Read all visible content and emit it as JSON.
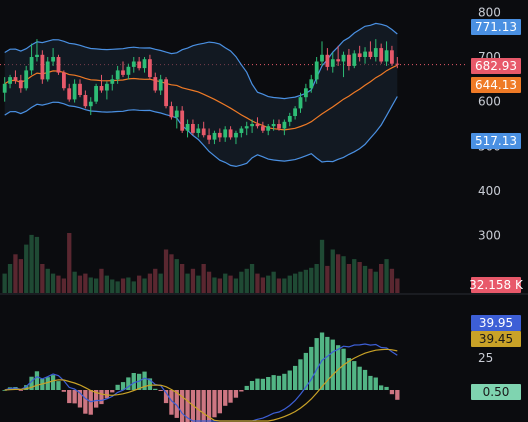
{
  "chart_data": {
    "type": "candlestick",
    "price_panel": {
      "y_ticks": [
        {
          "value": 800,
          "label": "800"
        },
        {
          "value": 700,
          "label": "700"
        },
        {
          "value": 600,
          "label": "600"
        },
        {
          "value": 500,
          "label": "500"
        },
        {
          "value": 400,
          "label": "400"
        },
        {
          "value": 300,
          "label": "300"
        }
      ],
      "ylim": [
        250,
        815
      ],
      "badges": {
        "upper_band": {
          "label": "771.13",
          "color": "#4a90e2"
        },
        "last_price": {
          "label": "682.93",
          "color": "#e8596a"
        },
        "moving_average": {
          "label": "644.13",
          "color": "#ef7a26"
        },
        "lower_band": {
          "label": "517.13",
          "color": "#4a90e2"
        }
      },
      "last_price_line": 682.93,
      "candles": [
        {
          "o": 620,
          "h": 655,
          "l": 600,
          "c": 640
        },
        {
          "o": 640,
          "h": 660,
          "l": 630,
          "c": 655
        },
        {
          "o": 655,
          "h": 670,
          "l": 640,
          "c": 648
        },
        {
          "o": 648,
          "h": 660,
          "l": 620,
          "c": 630
        },
        {
          "o": 630,
          "h": 680,
          "l": 625,
          "c": 670
        },
        {
          "o": 670,
          "h": 730,
          "l": 660,
          "c": 700
        },
        {
          "o": 700,
          "h": 740,
          "l": 690,
          "c": 705
        },
        {
          "o": 705,
          "h": 715,
          "l": 640,
          "c": 650
        },
        {
          "o": 650,
          "h": 700,
          "l": 645,
          "c": 690
        },
        {
          "o": 690,
          "h": 720,
          "l": 680,
          "c": 700
        },
        {
          "o": 700,
          "h": 705,
          "l": 660,
          "c": 665
        },
        {
          "o": 665,
          "h": 670,
          "l": 625,
          "c": 630
        },
        {
          "o": 630,
          "h": 640,
          "l": 600,
          "c": 605
        },
        {
          "o": 605,
          "h": 650,
          "l": 598,
          "c": 640
        },
        {
          "o": 640,
          "h": 650,
          "l": 610,
          "c": 615
        },
        {
          "o": 615,
          "h": 625,
          "l": 585,
          "c": 590
        },
        {
          "o": 590,
          "h": 610,
          "l": 570,
          "c": 600
        },
        {
          "o": 600,
          "h": 640,
          "l": 595,
          "c": 635
        },
        {
          "o": 635,
          "h": 660,
          "l": 620,
          "c": 625
        },
        {
          "o": 625,
          "h": 645,
          "l": 605,
          "c": 640
        },
        {
          "o": 640,
          "h": 660,
          "l": 625,
          "c": 650
        },
        {
          "o": 650,
          "h": 680,
          "l": 640,
          "c": 670
        },
        {
          "o": 670,
          "h": 690,
          "l": 655,
          "c": 660
        },
        {
          "o": 660,
          "h": 685,
          "l": 650,
          "c": 678
        },
        {
          "o": 678,
          "h": 700,
          "l": 665,
          "c": 690
        },
        {
          "o": 690,
          "h": 700,
          "l": 670,
          "c": 675
        },
        {
          "o": 675,
          "h": 700,
          "l": 665,
          "c": 695
        },
        {
          "o": 695,
          "h": 705,
          "l": 650,
          "c": 655
        },
        {
          "o": 655,
          "h": 665,
          "l": 620,
          "c": 625
        },
        {
          "o": 625,
          "h": 660,
          "l": 615,
          "c": 650
        },
        {
          "o": 650,
          "h": 655,
          "l": 585,
          "c": 590
        },
        {
          "o": 590,
          "h": 600,
          "l": 560,
          "c": 565
        },
        {
          "o": 565,
          "h": 590,
          "l": 540,
          "c": 580
        },
        {
          "o": 580,
          "h": 590,
          "l": 530,
          "c": 535
        },
        {
          "o": 535,
          "h": 560,
          "l": 520,
          "c": 550
        },
        {
          "o": 550,
          "h": 560,
          "l": 525,
          "c": 530
        },
        {
          "o": 530,
          "h": 550,
          "l": 520,
          "c": 540
        },
        {
          "o": 540,
          "h": 555,
          "l": 520,
          "c": 525
        },
        {
          "o": 525,
          "h": 540,
          "l": 505,
          "c": 515
        },
        {
          "o": 515,
          "h": 535,
          "l": 505,
          "c": 530
        },
        {
          "o": 530,
          "h": 540,
          "l": 510,
          "c": 520
        },
        {
          "o": 520,
          "h": 545,
          "l": 510,
          "c": 538
        },
        {
          "o": 538,
          "h": 545,
          "l": 515,
          "c": 520
        },
        {
          "o": 520,
          "h": 535,
          "l": 505,
          "c": 530
        },
        {
          "o": 530,
          "h": 545,
          "l": 520,
          "c": 540
        },
        {
          "o": 540,
          "h": 555,
          "l": 525,
          "c": 545
        },
        {
          "o": 545,
          "h": 560,
          "l": 530,
          "c": 550
        },
        {
          "o": 550,
          "h": 565,
          "l": 540,
          "c": 545
        },
        {
          "o": 545,
          "h": 555,
          "l": 530,
          "c": 535
        },
        {
          "o": 535,
          "h": 550,
          "l": 525,
          "c": 545
        },
        {
          "o": 545,
          "h": 560,
          "l": 535,
          "c": 550
        },
        {
          "o": 550,
          "h": 560,
          "l": 535,
          "c": 540
        },
        {
          "o": 540,
          "h": 560,
          "l": 525,
          "c": 555
        },
        {
          "o": 555,
          "h": 575,
          "l": 545,
          "c": 568
        },
        {
          "o": 568,
          "h": 590,
          "l": 560,
          "c": 585
        },
        {
          "o": 585,
          "h": 620,
          "l": 575,
          "c": 610
        },
        {
          "o": 610,
          "h": 640,
          "l": 600,
          "c": 630
        },
        {
          "o": 630,
          "h": 660,
          "l": 620,
          "c": 650
        },
        {
          "o": 650,
          "h": 700,
          "l": 640,
          "c": 690
        },
        {
          "o": 690,
          "h": 735,
          "l": 680,
          "c": 705
        },
        {
          "o": 705,
          "h": 720,
          "l": 670,
          "c": 678
        },
        {
          "o": 678,
          "h": 710,
          "l": 665,
          "c": 695
        },
        {
          "o": 695,
          "h": 725,
          "l": 680,
          "c": 690
        },
        {
          "o": 690,
          "h": 712,
          "l": 655,
          "c": 705
        },
        {
          "o": 705,
          "h": 718,
          "l": 670,
          "c": 680
        },
        {
          "o": 680,
          "h": 715,
          "l": 675,
          "c": 708
        },
        {
          "o": 708,
          "h": 725,
          "l": 690,
          "c": 700
        },
        {
          "o": 700,
          "h": 722,
          "l": 685,
          "c": 712
        },
        {
          "o": 712,
          "h": 735,
          "l": 695,
          "c": 700
        },
        {
          "o": 700,
          "h": 740,
          "l": 690,
          "c": 720
        },
        {
          "o": 720,
          "h": 730,
          "l": 685,
          "c": 690
        },
        {
          "o": 690,
          "h": 735,
          "l": 680,
          "c": 715
        },
        {
          "o": 715,
          "h": 725,
          "l": 680,
          "c": 685
        },
        {
          "o": 685,
          "h": 700,
          "l": 675,
          "c": 682.93
        }
      ]
    },
    "volume_panel": {
      "badge": {
        "label": "32.158 K",
        "color": "#e8596a"
      },
      "values": [
        20,
        30,
        40,
        35,
        50,
        60,
        58,
        30,
        25,
        20,
        18,
        15,
        62,
        22,
        18,
        20,
        16,
        15,
        25,
        18,
        14,
        12,
        15,
        16,
        12,
        18,
        15,
        20,
        25,
        20,
        45,
        40,
        35,
        30,
        20,
        25,
        18,
        30,
        22,
        16,
        15,
        20,
        18,
        15,
        22,
        25,
        30,
        20,
        16,
        18,
        22,
        15,
        15,
        18,
        20,
        22,
        24,
        26,
        30,
        55,
        28,
        45,
        40,
        38,
        30,
        35,
        32,
        28,
        25,
        22,
        30,
        35,
        25,
        15
      ]
    },
    "macd_panel": {
      "ylim": [
        -60,
        55
      ],
      "y_ticks": [
        {
          "value": 25,
          "label": "25"
        }
      ],
      "badges": {
        "macd": {
          "label": "39.95",
          "color": "#3d5fd6"
        },
        "signal": {
          "label": "39.45",
          "color": "#c9a227"
        },
        "histogram": {
          "label": "0.50",
          "color": "#7fd4b0"
        }
      }
    }
  }
}
